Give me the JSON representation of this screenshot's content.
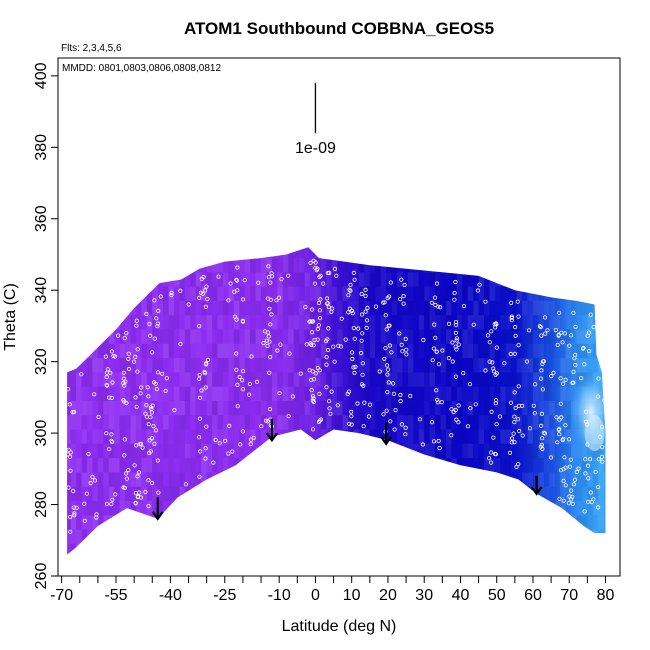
{
  "chart_data": {
    "type": "heatmap",
    "title": "ATOM1 Southbound COBBNA_GEOS5",
    "flights_label": "Flts: 2,3,4,5,6",
    "dates_label": "MMDD: 0801,0803,0806,0808,0812",
    "xlabel": "Latitude (deg N)",
    "ylabel": "Theta (C)",
    "xlim": [
      -71,
      84
    ],
    "ylim": [
      260,
      405
    ],
    "x_tick_labels": [
      "-70",
      "-55",
      "-40",
      "-25",
      "-10",
      "0",
      "10",
      "20",
      "30",
      "40",
      "50",
      "60",
      "70",
      "80"
    ],
    "x_tick_values": [
      -70,
      -55,
      -40,
      -25,
      -10,
      0,
      10,
      20,
      30,
      40,
      50,
      60,
      70,
      80
    ],
    "x_minor_ticks": [
      -65,
      -60,
      -50,
      -45,
      -35,
      -30,
      -20,
      -15,
      -5,
      5,
      15,
      25,
      35,
      45,
      55,
      65,
      75
    ],
    "y_ticks": [
      260,
      280,
      300,
      320,
      340,
      360,
      380,
      400
    ],
    "scale_marker_label": "1e-09",
    "scale_marker": {
      "x": 0,
      "y_top": 398,
      "y_bottom": 384
    },
    "color_scale": [
      {
        "lat": -70,
        "color": "#8f2ef2"
      },
      {
        "lat": -10,
        "color": "#8b2cf0"
      },
      {
        "lat": 0,
        "color": "#6c1fe5"
      },
      {
        "lat": 5,
        "color": "#4512d8"
      },
      {
        "lat": 15,
        "color": "#1908ca"
      },
      {
        "lat": 40,
        "color": "#0c06c6"
      },
      {
        "lat": 55,
        "color": "#0a10cc"
      },
      {
        "lat": 65,
        "color": "#1a4ee0"
      },
      {
        "lat": 72,
        "color": "#2f8cf2"
      },
      {
        "lat": 80,
        "color": "#3aa8f8"
      }
    ],
    "highlight_color": "#d8f0ff",
    "upper_boundary": [
      {
        "lat": -68.5,
        "theta": 317
      },
      {
        "lat": -66,
        "theta": 318
      },
      {
        "lat": -64,
        "theta": 320
      },
      {
        "lat": -60,
        "theta": 324
      },
      {
        "lat": -55,
        "theta": 329
      },
      {
        "lat": -50,
        "theta": 335
      },
      {
        "lat": -47,
        "theta": 338
      },
      {
        "lat": -43,
        "theta": 342
      },
      {
        "lat": -37,
        "theta": 343
      },
      {
        "lat": -32,
        "theta": 346
      },
      {
        "lat": -25,
        "theta": 348
      },
      {
        "lat": -15,
        "theta": 349
      },
      {
        "lat": -8,
        "theta": 350
      },
      {
        "lat": -2,
        "theta": 352
      },
      {
        "lat": 1,
        "theta": 349
      },
      {
        "lat": 8,
        "theta": 348
      },
      {
        "lat": 15,
        "theta": 347
      },
      {
        "lat": 25,
        "theta": 346
      },
      {
        "lat": 35,
        "theta": 345
      },
      {
        "lat": 45,
        "theta": 344
      },
      {
        "lat": 50,
        "theta": 342
      },
      {
        "lat": 55,
        "theta": 340
      },
      {
        "lat": 60,
        "theta": 339
      },
      {
        "lat": 65,
        "theta": 338
      },
      {
        "lat": 72,
        "theta": 337
      },
      {
        "lat": 77,
        "theta": 336
      },
      {
        "lat": 77.5,
        "theta": 322
      },
      {
        "lat": 79,
        "theta": 317
      },
      {
        "lat": 79.5,
        "theta": 308
      },
      {
        "lat": 80,
        "theta": 300
      },
      {
        "lat": 80,
        "theta": 272
      }
    ],
    "lower_boundary": [
      {
        "lat": -68.5,
        "theta": 266
      },
      {
        "lat": -66,
        "theta": 268
      },
      {
        "lat": -60,
        "theta": 274
      },
      {
        "lat": -52,
        "theta": 279
      },
      {
        "lat": -43.5,
        "theta": 276
      },
      {
        "lat": -38,
        "theta": 282
      },
      {
        "lat": -30,
        "theta": 287
      },
      {
        "lat": -22,
        "theta": 291
      },
      {
        "lat": -12,
        "theta": 299
      },
      {
        "lat": -4,
        "theta": 301
      },
      {
        "lat": 0,
        "theta": 298
      },
      {
        "lat": 5,
        "theta": 301
      },
      {
        "lat": 12,
        "theta": 300
      },
      {
        "lat": 20,
        "theta": 298
      },
      {
        "lat": 30,
        "theta": 294
      },
      {
        "lat": 40,
        "theta": 291
      },
      {
        "lat": 50,
        "theta": 289
      },
      {
        "lat": 56,
        "theta": 287
      },
      {
        "lat": 61,
        "theta": 283
      },
      {
        "lat": 68,
        "theta": 279
      },
      {
        "lat": 74,
        "theta": 274
      },
      {
        "lat": 77,
        "theta": 272
      },
      {
        "lat": 80,
        "theta": 272
      }
    ],
    "tropopause_arrows": [
      {
        "lat": -43.5,
        "theta_top": 282,
        "theta_bottom": 276
      },
      {
        "lat": -12,
        "theta_top": 304,
        "theta_bottom": 298
      },
      {
        "lat": 19.5,
        "theta_top": 303,
        "theta_bottom": 297
      },
      {
        "lat": 61,
        "theta_top": 288,
        "theta_bottom": 283
      }
    ],
    "sample_points_note": "Open circles mark sampling locations along flight tracks",
    "sample_point_count": 650
  }
}
